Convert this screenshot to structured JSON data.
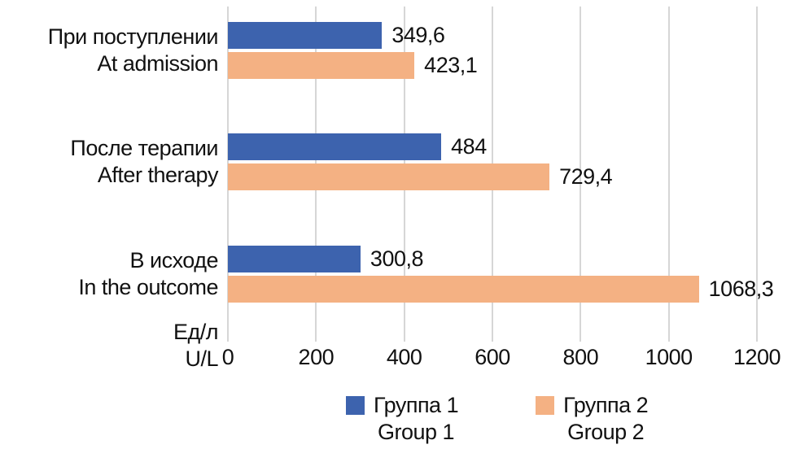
{
  "chart_data": {
    "type": "bar",
    "orientation": "horizontal",
    "title": "",
    "xlabel": "",
    "ylabel": "",
    "xlim": [
      0,
      1200
    ],
    "x_ticks": [
      0,
      200,
      400,
      600,
      800,
      1000,
      1200
    ],
    "x_tick_labels": [
      "0",
      "200",
      "400",
      "600",
      "800",
      "1000",
      "1200"
    ],
    "unit_label": {
      "ru": "Ед/л",
      "en": "U/L"
    },
    "grid": true,
    "legend_position": "bottom",
    "categories": [
      {
        "ru": "При поступлении",
        "en": "At admission"
      },
      {
        "ru": "После терапии",
        "en": "After therapy"
      },
      {
        "ru": "В исходе",
        "en": "In the outcome"
      }
    ],
    "series": [
      {
        "name": {
          "ru": "Группа 1",
          "en": "Group 1"
        },
        "color": "#3d63ae",
        "values": [
          349.6,
          484,
          300.8
        ],
        "value_labels": [
          "349,6",
          "484",
          "300,8"
        ]
      },
      {
        "name": {
          "ru": "Группа 2",
          "en": "Group 2"
        },
        "color": "#f4b183",
        "values": [
          423.1,
          729.4,
          1068.3
        ],
        "value_labels": [
          "423,1",
          "729,4",
          "1068,3"
        ]
      }
    ]
  },
  "colors": {
    "grid": "#d6d6d6",
    "text": "#111111",
    "background": "#ffffff"
  }
}
